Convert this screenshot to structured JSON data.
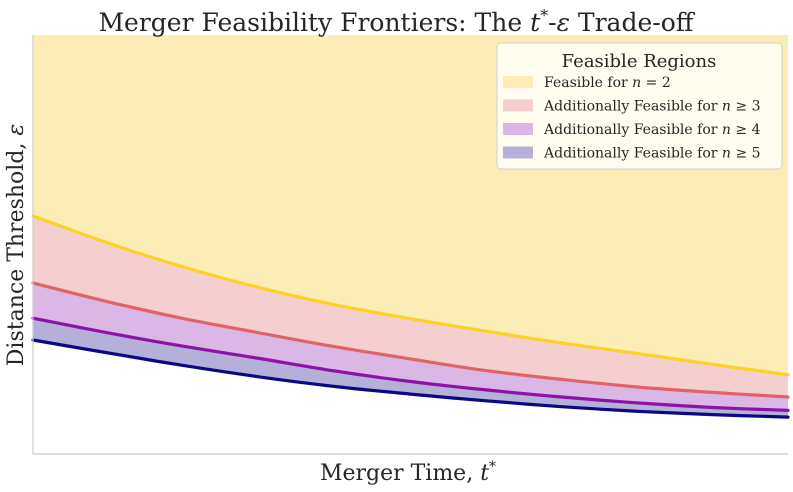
{
  "chart_data": {
    "type": "area",
    "title": {
      "prefix": "Merger Feasibility Frontiers: The ",
      "var1": "t",
      "var1_sup": "*",
      "mid": "-",
      "var2": "ε",
      "suffix": " Trade-off"
    },
    "xlabel": {
      "prefix": "Merger Time, ",
      "var": "t",
      "sup": "*"
    },
    "ylabel": {
      "prefix": "Distance Threshold, ",
      "var": "ε"
    },
    "x": [
      0.0,
      0.1,
      0.2,
      0.3,
      0.4,
      0.5,
      0.6,
      0.7,
      0.8,
      0.9,
      1.0
    ],
    "xlim": [
      0,
      1
    ],
    "ylim": [
      0,
      1
    ],
    "grid": false,
    "ticks_visible": false,
    "series": [
      {
        "name_prefix": "Feasible for ",
        "var": "n",
        "op": " = ",
        "num": "2",
        "color": "#fcd227",
        "fill": "#fcecb6",
        "values": [
          0.568,
          0.503,
          0.446,
          0.397,
          0.356,
          0.323,
          0.293,
          0.265,
          0.24,
          0.214,
          0.189
        ]
      },
      {
        "name_prefix": "Additionally Feasible for ",
        "var": "n",
        "op": " ≥ ",
        "num": "3",
        "color": "#e06467",
        "fill": "#f5ced0",
        "values": [
          0.408,
          0.363,
          0.323,
          0.289,
          0.256,
          0.227,
          0.199,
          0.178,
          0.16,
          0.147,
          0.136
        ]
      },
      {
        "name_prefix": "Additionally Feasible for ",
        "var": "n",
        "op": " ≥ ",
        "num": "4",
        "color": "#8b13a8",
        "fill": "#dbb7e5",
        "values": [
          0.324,
          0.289,
          0.257,
          0.228,
          0.198,
          0.173,
          0.153,
          0.136,
          0.122,
          0.111,
          0.104
        ]
      },
      {
        "name_prefix": "Additionally Feasible for ",
        "var": "n",
        "op": " ≥ ",
        "num": "5",
        "color": "#0c0787",
        "fill": "#b4b0d8",
        "values": [
          0.272,
          0.241,
          0.211,
          0.184,
          0.161,
          0.143,
          0.127,
          0.113,
          0.102,
          0.094,
          0.088
        ]
      }
    ],
    "legend": {
      "title": "Feasible Regions",
      "placement": "upper-right"
    }
  }
}
